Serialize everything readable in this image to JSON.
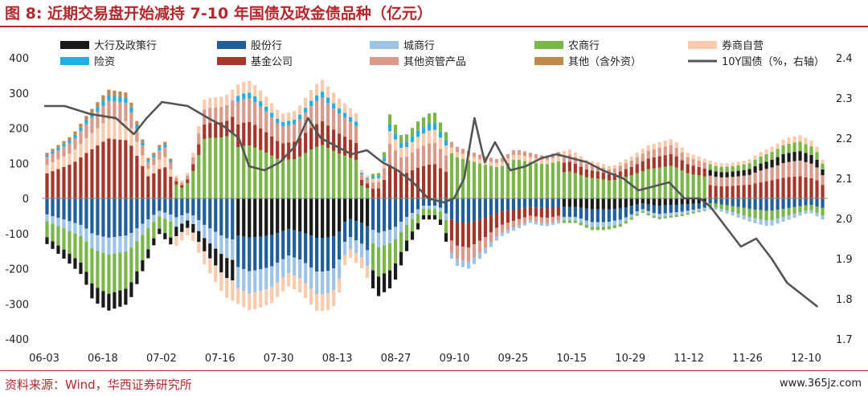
{
  "title": "图 8: 近期交易盘开始减持 7-10 年国债及政金债品种（亿元）",
  "source": "资料来源：Wind，华西证券研究所",
  "watermark": "www.365jz.com",
  "chart_data": {
    "type": "bar",
    "stacked": true,
    "categories": [
      "06-03",
      "06-18",
      "07-02",
      "07-16",
      "07-30",
      "08-13",
      "08-27",
      "09-10",
      "09-25",
      "10-15",
      "10-29",
      "11-12",
      "11-26",
      "12-10"
    ],
    "ylim": [
      -400,
      400
    ],
    "y2lim": [
      1.7,
      2.4
    ],
    "yticks": [
      400,
      300,
      200,
      100,
      0,
      -100,
      -200,
      -300,
      -400
    ],
    "y2ticks": [
      "2.4",
      "2.3",
      "2.2",
      "2.1",
      "2.0",
      "1.9",
      "1.8",
      "1.7"
    ],
    "legend": [
      {
        "name": "大行及政策行",
        "color": "#1a1a1a"
      },
      {
        "name": "股份行",
        "color": "#1f5f9a"
      },
      {
        "name": "城商行",
        "color": "#9dc3e6"
      },
      {
        "name": "农商行",
        "color": "#7ab648"
      },
      {
        "name": "券商自营",
        "color": "#f8cbad"
      },
      {
        "name": "险资",
        "color": "#1fb0e6"
      },
      {
        "name": "基金公司",
        "color": "#a5372a"
      },
      {
        "name": "其他资管产品",
        "color": "#d99a8a"
      },
      {
        "name": "其他（含外资）",
        "color": "#c08a4a"
      },
      {
        "name": "10Y国债（%，右轴）",
        "color": "#555555",
        "type": "line"
      }
    ],
    "bar_count": 139,
    "pos_control": [
      [
        0,
        130
      ],
      [
        10,
        180
      ],
      [
        16,
        240
      ],
      [
        24,
        310
      ],
      [
        32,
        300
      ],
      [
        40,
        110
      ],
      [
        46,
        170
      ],
      [
        52,
        40
      ],
      [
        56,
        80
      ],
      [
        62,
        285
      ],
      [
        70,
        290
      ],
      [
        76,
        330
      ],
      [
        80,
        335
      ],
      [
        85,
        300
      ],
      [
        92,
        240
      ],
      [
        98,
        250
      ],
      [
        104,
        310
      ],
      [
        108,
        340
      ],
      [
        114,
        290
      ],
      [
        122,
        240
      ],
      [
        124,
        60
      ],
      [
        128,
        70
      ],
      [
        130,
        70
      ],
      [
        132,
        80
      ],
      [
        134,
        250
      ],
      [
        140,
        170
      ],
      [
        146,
        220
      ],
      [
        152,
        250
      ],
      [
        160,
        150
      ],
      [
        168,
        130
      ],
      [
        172,
        120
      ],
      [
        178,
        110
      ],
      [
        184,
        140
      ],
      [
        190,
        130
      ],
      [
        196,
        120
      ],
      [
        200,
        130
      ],
      [
        206,
        140
      ],
      [
        212,
        110
      ],
      [
        218,
        100
      ],
      [
        222,
        90
      ],
      [
        230,
        120
      ],
      [
        236,
        150
      ],
      [
        246,
        170
      ],
      [
        252,
        130
      ],
      [
        256,
        120
      ],
      [
        260,
        110
      ],
      [
        264,
        100
      ],
      [
        268,
        100
      ],
      [
        276,
        110
      ],
      [
        280,
        130
      ],
      [
        286,
        150
      ],
      [
        290,
        170
      ],
      [
        296,
        180
      ],
      [
        302,
        160
      ],
      [
        305,
        110
      ]
    ],
    "neg_control": [
      [
        0,
        -130
      ],
      [
        8,
        -180
      ],
      [
        14,
        -220
      ],
      [
        18,
        -290
      ],
      [
        24,
        -320
      ],
      [
        32,
        -300
      ],
      [
        38,
        -200
      ],
      [
        44,
        -100
      ],
      [
        50,
        -140
      ],
      [
        56,
        -100
      ],
      [
        62,
        -190
      ],
      [
        70,
        -280
      ],
      [
        80,
        -320
      ],
      [
        88,
        -300
      ],
      [
        95,
        -250
      ],
      [
        100,
        -270
      ],
      [
        106,
        -320
      ],
      [
        110,
        -320
      ],
      [
        114,
        -300
      ],
      [
        118,
        -160
      ],
      [
        124,
        -200
      ],
      [
        130,
        -280
      ],
      [
        136,
        -250
      ],
      [
        142,
        -140
      ],
      [
        148,
        -60
      ],
      [
        154,
        -60
      ],
      [
        160,
        -190
      ],
      [
        166,
        -200
      ],
      [
        172,
        -160
      ],
      [
        178,
        -110
      ],
      [
        184,
        -90
      ],
      [
        190,
        -70
      ],
      [
        196,
        -80
      ],
      [
        202,
        -70
      ],
      [
        208,
        -70
      ],
      [
        214,
        -90
      ],
      [
        220,
        -90
      ],
      [
        226,
        -80
      ],
      [
        234,
        -40
      ],
      [
        240,
        -60
      ],
      [
        250,
        -50
      ],
      [
        256,
        -40
      ],
      [
        262,
        -30
      ],
      [
        270,
        -50
      ],
      [
        278,
        -70
      ],
      [
        284,
        -80
      ],
      [
        292,
        -60
      ],
      [
        300,
        -40
      ],
      [
        305,
        -60
      ]
    ],
    "line_control": [
      [
        0,
        2.28
      ],
      [
        8,
        2.28
      ],
      [
        18,
        2.26
      ],
      [
        28,
        2.25
      ],
      [
        35,
        2.21
      ],
      [
        40,
        2.25
      ],
      [
        46,
        2.29
      ],
      [
        56,
        2.28
      ],
      [
        64,
        2.25
      ],
      [
        70,
        2.23
      ],
      [
        76,
        2.2
      ],
      [
        80,
        2.13
      ],
      [
        86,
        2.12
      ],
      [
        92,
        2.14
      ],
      [
        98,
        2.18
      ],
      [
        103,
        2.25
      ],
      [
        108,
        2.2
      ],
      [
        114,
        2.18
      ],
      [
        120,
        2.16
      ],
      [
        126,
        2.17
      ],
      [
        132,
        2.14
      ],
      [
        138,
        2.12
      ],
      [
        144,
        2.09
      ],
      [
        150,
        2.05
      ],
      [
        156,
        2.04
      ],
      [
        160,
        2.05
      ],
      [
        164,
        2.1
      ],
      [
        168,
        2.25
      ],
      [
        172,
        2.14
      ],
      [
        176,
        2.19
      ],
      [
        182,
        2.12
      ],
      [
        188,
        2.13
      ],
      [
        194,
        2.15
      ],
      [
        200,
        2.16
      ],
      [
        206,
        2.15
      ],
      [
        212,
        2.14
      ],
      [
        218,
        2.12
      ],
      [
        226,
        2.1
      ],
      [
        232,
        2.07
      ],
      [
        238,
        2.08
      ],
      [
        244,
        2.09
      ],
      [
        250,
        2.05
      ],
      [
        256,
        2.05
      ],
      [
        260,
        2.03
      ],
      [
        266,
        1.98
      ],
      [
        272,
        1.93
      ],
      [
        278,
        1.95
      ],
      [
        284,
        1.9
      ],
      [
        290,
        1.84
      ],
      [
        296,
        1.81
      ],
      [
        302,
        1.78
      ]
    ]
  }
}
